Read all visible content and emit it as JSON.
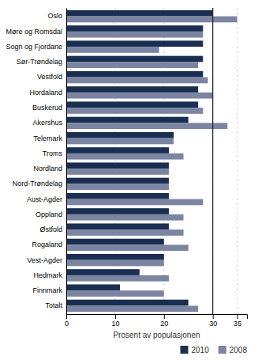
{
  "chart_data": {
    "type": "bar",
    "orientation": "horizontal",
    "categories": [
      "Oslo",
      "Møre og Romsdal",
      "Sogn og Fjordane",
      "Sør-Trøndelag",
      "Vestfold",
      "Hordaland",
      "Buskerud",
      "Akershus",
      "Telemark",
      "Troms",
      "Nordland",
      "Nord-Trøndelag",
      "Aust-Agder",
      "Oppland",
      "Østfold",
      "Rogaland",
      "Vest-Agder",
      "Hedmark",
      "Finnmark",
      "Totalt"
    ],
    "series": [
      {
        "name": "2010",
        "color": "#1a2e52",
        "values": [
          30,
          28,
          28,
          28,
          28,
          27,
          27,
          25,
          22,
          21,
          21,
          21,
          21,
          21,
          21,
          20,
          20,
          15,
          11,
          25
        ]
      },
      {
        "name": "2008",
        "color": "#7b84a0",
        "values": [
          35,
          28,
          19,
          27,
          29,
          30,
          28,
          33,
          22,
          24,
          21,
          21,
          28,
          24,
          24,
          25,
          20,
          21,
          20,
          27
        ]
      }
    ],
    "xlabel": "Prosent av populasjonen",
    "xlim": [
      0,
      37
    ],
    "xticks": [
      0,
      10,
      20,
      30,
      35
    ],
    "vline": 30,
    "grid": true,
    "legend": "lower right"
  }
}
